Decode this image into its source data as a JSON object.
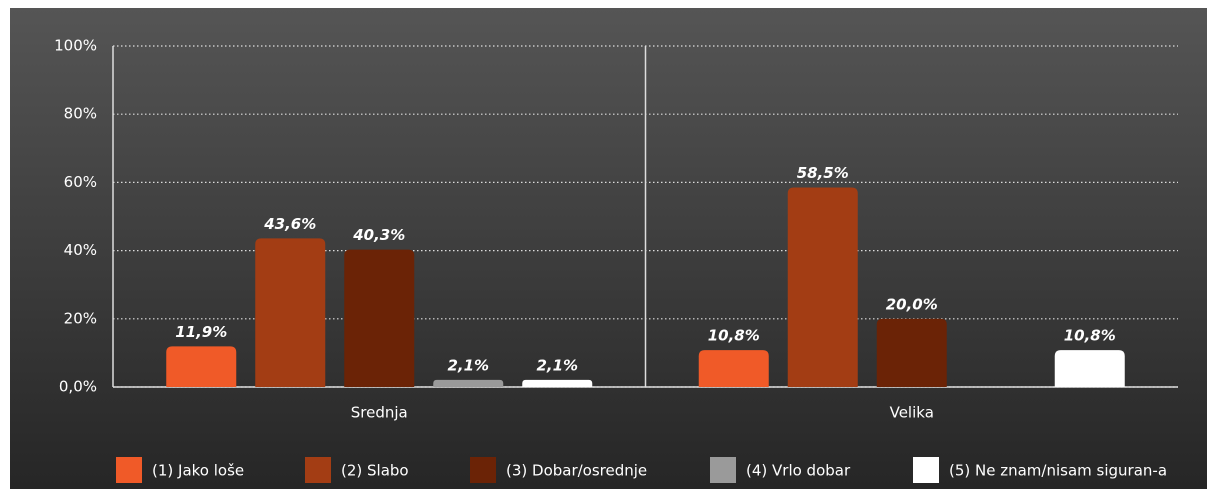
{
  "chart_data": {
    "type": "bar",
    "categories": [
      "Srednja",
      "Velika"
    ],
    "series": [
      {
        "name": "(1) Jako loše",
        "color": "#f05a28",
        "values": [
          11.9,
          10.8
        ],
        "value_labels": [
          "11,9%",
          "10,8%"
        ]
      },
      {
        "name": "(2) Slabo",
        "color": "#a33d14",
        "values": [
          43.6,
          58.5
        ],
        "value_labels": [
          "43,6%",
          "58,5%"
        ]
      },
      {
        "name": "(3) Dobar/osrednje",
        "color": "#6b2306",
        "values": [
          40.3,
          20.0
        ],
        "value_labels": [
          "40,3%",
          "20,0%"
        ]
      },
      {
        "name": "(4) Vrlo dobar",
        "color": "#9a9a9a",
        "values": [
          2.1,
          null
        ],
        "value_labels": [
          "2,1%",
          null
        ]
      },
      {
        "name": "(5) Ne znam/nisam siguran-a",
        "color": "#ffffff",
        "values": [
          2.1,
          10.8
        ],
        "value_labels": [
          "2,1%",
          "10,8%"
        ]
      }
    ],
    "ylim": [
      0,
      100
    ],
    "yticks": [
      {
        "value": 0,
        "label": "0,0%"
      },
      {
        "value": 20,
        "label": "20%"
      },
      {
        "value": 40,
        "label": "40%"
      },
      {
        "value": 60,
        "label": "60%"
      },
      {
        "value": 80,
        "label": "80%"
      },
      {
        "value": 100,
        "label": "100%"
      }
    ],
    "grid": true,
    "legend": "bottom"
  }
}
